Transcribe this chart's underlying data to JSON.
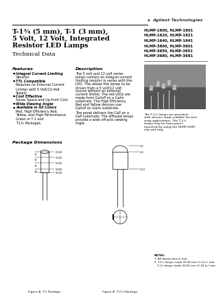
{
  "background_color": "#ffffff",
  "agilent_logo_text": "Agilent Technologies",
  "title_line1": "T-1¾ (5 mm), T-1 (3 mm),",
  "title_line2": "5 Volt, 12 Volt, Integrated",
  "title_line3": "Resistor LED Lamps",
  "subtitle": "Technical Data",
  "part_numbers": [
    "HLMP-1600, HLMP-1601",
    "HLMP-1620, HLMP-1621",
    "HLMP-1640, HLMP-1641",
    "HLMP-3600, HLMP-3601",
    "HLMP-3650, HLMP-3651",
    "HLMP-3680, HLMP-3681"
  ],
  "features_title": "Features",
  "feature_list": [
    [
      "Integral Current Limiting",
      "bold"
    ],
    [
      "Resistor",
      "bold"
    ],
    [
      "TTL Compatible",
      "bold"
    ],
    [
      "Requires no External Current",
      "normal"
    ],
    [
      "Limiter with 5 Volt/12-Volt",
      "normal"
    ],
    [
      "Supply",
      "normal"
    ],
    [
      "Cost Effective",
      "bold"
    ],
    [
      "Saves Space and Up-front Cost",
      "normal"
    ],
    [
      "Wide Viewing Angle",
      "bold"
    ],
    [
      "Available in All Colors",
      "bold"
    ],
    [
      "Red, High Efficiency Red,",
      "normal"
    ],
    [
      "Yellow, and High Performance",
      "normal"
    ],
    [
      "Green in T-1 and",
      "normal"
    ],
    [
      "T-1¾ Packages",
      "normal"
    ]
  ],
  "feature_bullets": [
    0,
    2,
    6,
    8,
    9
  ],
  "description_title": "Description",
  "desc_lines": [
    "The 5 volt and 12 volt series",
    "lamps contain an integral current",
    "limiting resistor in series with the",
    "LED. This allows the lamps to be",
    "driven from a 5 volt/12 volt",
    "source without an external",
    "current limiter. The red LEDs are",
    "made from GaAsP on a GaAs",
    "substrate. The High Efficiency",
    "Red and Yellow devices use",
    "GaAsP on GaAs substrate."
  ],
  "desc2_lines": [
    "The panel delivers the GaP on a",
    "GaP substrate. The diffused lamps",
    "provide a wide off-axis viewing",
    "angle."
  ],
  "right_text_lines": [
    "The T-1¾ lamps are provided",
    "with silicone leads suitable for wire",
    "wrap applications. The T-1¾",
    "lamps may be front panel",
    "mounted by using the HLMP-0300",
    "clip and ring."
  ],
  "pkg_dim_title": "Package Dimensions",
  "figure_a_label": "Figure A. T-1 Package.",
  "figure_b_label": "Figure B. T-1¾ Package.",
  "notes_lines": [
    "NOTES:",
    "1. All dimensions in mm.",
    "2. T-1¾ lamps: leads 25.40 mm (1.0 in.) min.",
    "   T-1¾ lamps: leads 30.00 mm (1.18 in.) min."
  ],
  "photo_color": "#aaaaaa",
  "led_colors": [
    "#444444",
    "#555555",
    "#666666",
    "#333333",
    "#444444"
  ]
}
